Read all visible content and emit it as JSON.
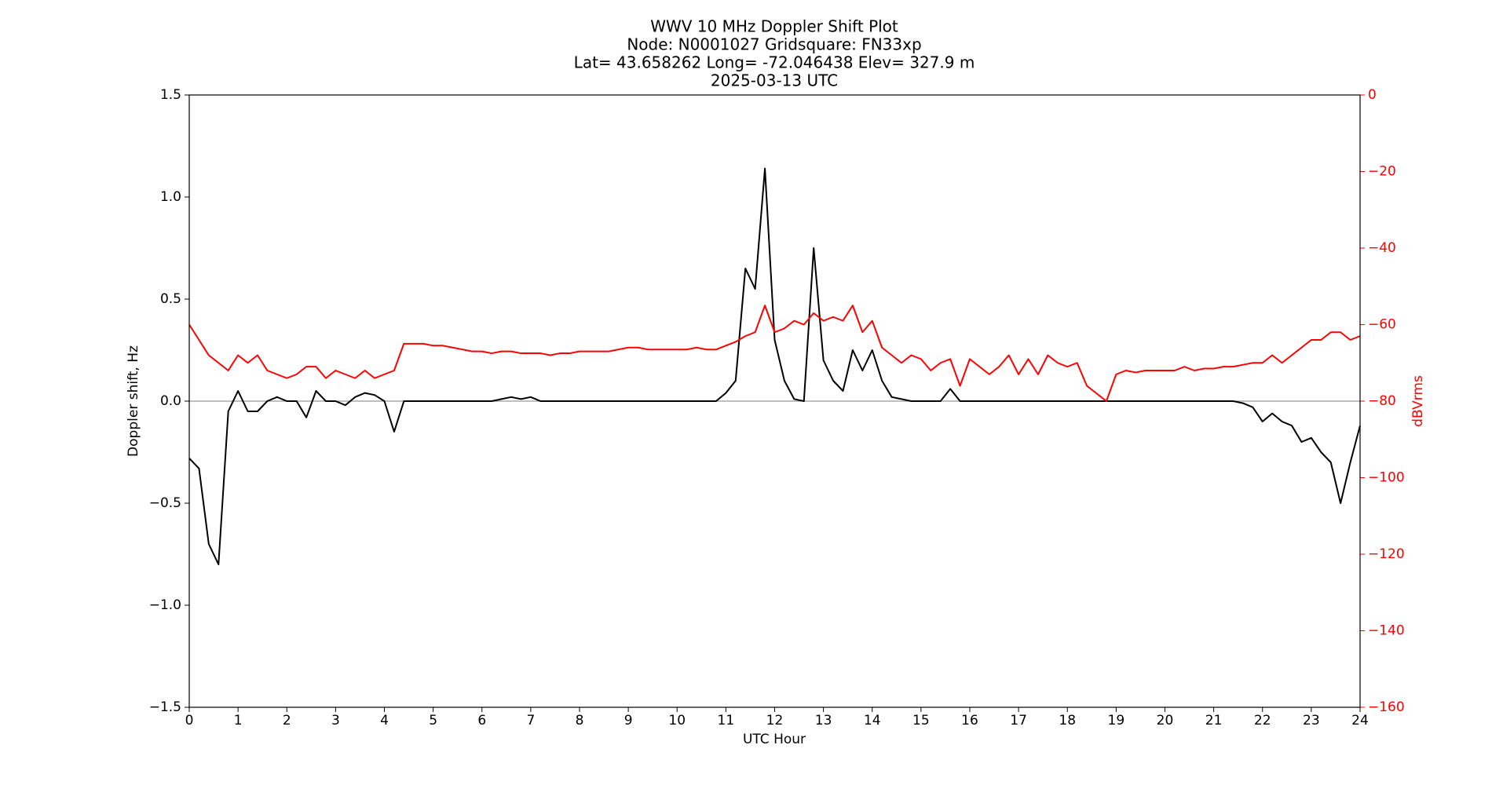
{
  "chart_data": {
    "type": "line",
    "title": [
      "WWV 10 MHz Doppler Shift Plot",
      "Node:  N0001027     Gridsquare:  FN33xp",
      "Lat=   43.658262    Long= -72.046438    Elev= 327.9 m",
      "2025-03-13  UTC"
    ],
    "x_label": "UTC Hour",
    "y_label": "Doppler shift, Hz",
    "y2_label": "dBVrms",
    "x": [
      0,
      0.2,
      0.4,
      0.6,
      0.8,
      1,
      1.2,
      1.4,
      1.6,
      1.8,
      2,
      2.2,
      2.4,
      2.6,
      2.8,
      3,
      3.2,
      3.4,
      3.6,
      3.8,
      4,
      4.2,
      4.4,
      4.6,
      4.8,
      5,
      5.2,
      5.4,
      5.6,
      5.8,
      6,
      6.2,
      6.4,
      6.6,
      6.8,
      7,
      7.2,
      7.4,
      7.6,
      7.8,
      8,
      8.2,
      8.4,
      8.6,
      8.8,
      9,
      9.2,
      9.4,
      9.6,
      9.8,
      10,
      10.2,
      10.4,
      10.6,
      10.8,
      11,
      11.2,
      11.4,
      11.6,
      11.8,
      12,
      12.2,
      12.4,
      12.6,
      12.8,
      13,
      13.2,
      13.4,
      13.6,
      13.8,
      14,
      14.2,
      14.4,
      14.6,
      14.8,
      15,
      15.2,
      15.4,
      15.6,
      15.8,
      16,
      16.2,
      16.4,
      16.6,
      16.8,
      17,
      17.2,
      17.4,
      17.6,
      17.8,
      18,
      18.2,
      18.4,
      18.6,
      18.8,
      19,
      19.2,
      19.4,
      19.6,
      19.8,
      20,
      20.2,
      20.4,
      20.6,
      20.8,
      21,
      21.2,
      21.4,
      21.6,
      21.8,
      22,
      22.2,
      22.4,
      22.6,
      22.8,
      23,
      23.2,
      23.4,
      23.6,
      23.8,
      24
    ],
    "series": [
      {
        "color": "#000000",
        "values": [
          -0.28,
          -0.33,
          -0.7,
          -0.8,
          -0.05,
          0.05,
          -0.05,
          -0.05,
          0,
          0.02,
          0,
          0,
          -0.08,
          0.05,
          0,
          0,
          -0.02,
          0.02,
          0.04,
          0.03,
          0,
          -0.15,
          0,
          0,
          0,
          0,
          0,
          0,
          0,
          0,
          0,
          0,
          0.01,
          0.02,
          0.01,
          0.02,
          0,
          0,
          0,
          0,
          0,
          0,
          0,
          0,
          0,
          0,
          0,
          0,
          0,
          0,
          0,
          0,
          0,
          0,
          0,
          0.04,
          0.1,
          0.65,
          0.55,
          1.14,
          0.3,
          0.1,
          0.01,
          0,
          0.75,
          0.2,
          0.1,
          0.05,
          0.25,
          0.15,
          0.25,
          0.1,
          0.02,
          0.01,
          0,
          0,
          0,
          0,
          0.06,
          0,
          0,
          0,
          0,
          0,
          0,
          0,
          0,
          0,
          0,
          0,
          0,
          0,
          0,
          0,
          0,
          0,
          0,
          0,
          0,
          0,
          0,
          0,
          0,
          0,
          0,
          0,
          0,
          0,
          -0.01,
          -0.03,
          -0.1,
          -0.06,
          -0.1,
          -0.12,
          -0.2,
          -0.18,
          -0.25,
          -0.3,
          -0.5,
          -0.3,
          -0.12
        ]
      },
      {
        "color": "#ff0000",
        "axis": "y2",
        "values": [
          -60,
          -64,
          -68,
          -70,
          -72,
          -68,
          -70,
          -68,
          -72,
          -73,
          -74,
          -73,
          -71,
          -71,
          -74,
          -72,
          -73,
          -74,
          -72,
          -74,
          -73,
          -72,
          -65,
          -65,
          -65,
          -65.5,
          -65.5,
          -66,
          -66.5,
          -67,
          -67,
          -67.5,
          -67,
          -67,
          -67.5,
          -67.5,
          -67.5,
          -68,
          -67.5,
          -67.5,
          -67,
          -67,
          -67,
          -67,
          -66.5,
          -66,
          -66,
          -66.5,
          -66.5,
          -66.5,
          -66.5,
          -66.5,
          -66,
          -66.5,
          -66.5,
          -65.5,
          -64.5,
          -63,
          -62,
          -55,
          -62,
          -61,
          -59,
          -60,
          -57,
          -59,
          -58,
          -59,
          -55,
          -62,
          -59,
          -66,
          -68,
          -70,
          -68,
          -69,
          -72,
          -70,
          -69,
          -76,
          -69,
          -71,
          -73,
          -71,
          -68,
          -73,
          -69,
          -73,
          -68,
          -70,
          -71,
          -70,
          -76,
          -78,
          -80,
          -73,
          -72,
          -72.5,
          -72,
          -72,
          -72,
          -72,
          -71,
          -72,
          -71.5,
          -71.5,
          -71,
          -71,
          -70.5,
          -70,
          -70,
          -68,
          -70,
          -68,
          -66,
          -64,
          -64,
          -62,
          -62,
          -64,
          -63
        ]
      }
    ],
    "reference_line": 0,
    "xlim": [
      0,
      24
    ],
    "xticks": [
      0,
      1,
      2,
      3,
      4,
      5,
      6,
      7,
      8,
      9,
      10,
      11,
      12,
      13,
      14,
      15,
      16,
      17,
      18,
      19,
      20,
      21,
      22,
      23,
      24
    ],
    "ylim": [
      -1.5,
      1.5
    ],
    "yticks": [
      {
        "value": -1.5,
        "label": "−1.5"
      },
      {
        "value": -1.0,
        "label": "−1.0"
      },
      {
        "value": -0.5,
        "label": "−0.5"
      },
      {
        "value": 0,
        "label": "0.0"
      },
      {
        "value": 0.5,
        "label": "0.5"
      },
      {
        "value": 1.0,
        "label": "1.0"
      },
      {
        "value": 1.5,
        "label": "1.5"
      }
    ],
    "y2lim": [
      -160,
      0
    ],
    "y2ticks": [
      {
        "value": -160,
        "label": "−160"
      },
      {
        "value": -140,
        "label": "−140"
      },
      {
        "value": -120,
        "label": "−120"
      },
      {
        "value": -100,
        "label": "−100"
      },
      {
        "value": -80,
        "label": "−80"
      },
      {
        "value": -60,
        "label": "−60"
      },
      {
        "value": -40,
        "label": "−40"
      },
      {
        "value": -20,
        "label": "−20"
      },
      0
    ],
    "y2_color": "#ff0000"
  }
}
